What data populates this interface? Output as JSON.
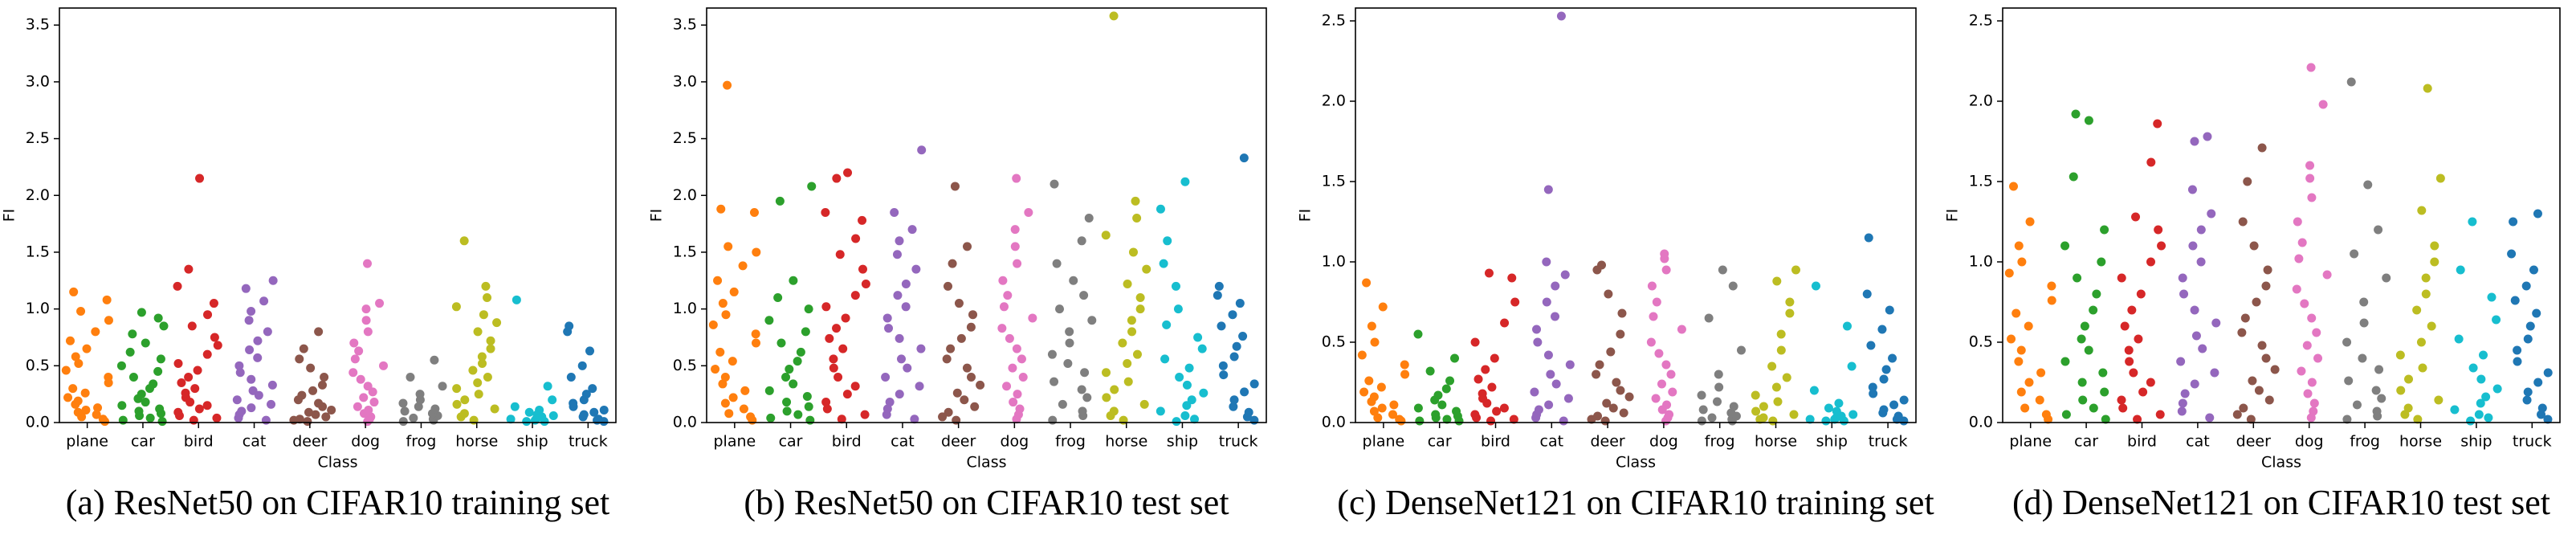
{
  "chart_data": [
    {
      "type": "strip",
      "title": "(a) ResNet50 on CIFAR10 training set",
      "xlabel": "Class",
      "ylabel": "FI",
      "categories": [
        "plane",
        "car",
        "bird",
        "cat",
        "deer",
        "dog",
        "frog",
        "horse",
        "ship",
        "truck"
      ],
      "colors": [
        "#ff7f0e",
        "#2ca02c",
        "#d62728",
        "#9467bd",
        "#8c564b",
        "#e377c2",
        "#7f7f7f",
        "#bcbd22",
        "#17becf",
        "#1f77b4"
      ],
      "ylim": [
        0,
        3.65
      ],
      "yticks": [
        {
          "value": 0,
          "label": "0.0"
        },
        0.5,
        {
          "value": 1,
          "label": "1.0"
        },
        1.5,
        {
          "value": 2,
          "label": "2.0"
        },
        2.5,
        {
          "value": 3,
          "label": "3.0"
        },
        3.5
      ],
      "values": [
        [
          0.01,
          0.03,
          0.05,
          0.07,
          0.09,
          0.11,
          0.13,
          0.16,
          0.19,
          0.22,
          0.26,
          0.3,
          0.35,
          0.4,
          0.46,
          0.52,
          0.58,
          0.65,
          0.72,
          0.8,
          0.9,
          0.98,
          1.08,
          1.15
        ],
        [
          0.01,
          0.02,
          0.04,
          0.06,
          0.08,
          0.1,
          0.12,
          0.15,
          0.18,
          0.21,
          0.25,
          0.3,
          0.34,
          0.4,
          0.45,
          0.5,
          0.56,
          0.62,
          0.7,
          0.78,
          0.85,
          0.92,
          0.97
        ],
        [
          0.02,
          0.04,
          0.06,
          0.09,
          0.12,
          0.15,
          0.18,
          0.22,
          0.26,
          0.3,
          0.35,
          0.4,
          0.46,
          0.52,
          0.6,
          0.68,
          0.75,
          0.85,
          0.95,
          1.05,
          1.2,
          1.35,
          2.15
        ],
        [
          0.02,
          0.04,
          0.07,
          0.1,
          0.13,
          0.16,
          0.2,
          0.24,
          0.28,
          0.33,
          0.38,
          0.44,
          0.5,
          0.57,
          0.64,
          0.72,
          0.8,
          0.9,
          0.98,
          1.07,
          1.18,
          1.25
        ],
        [
          0.01,
          0.02,
          0.03,
          0.05,
          0.07,
          0.09,
          0.11,
          0.14,
          0.17,
          0.2,
          0.24,
          0.28,
          0.33,
          0.4,
          0.48,
          0.56,
          0.65,
          0.8
        ],
        [
          0.01,
          0.03,
          0.05,
          0.08,
          0.11,
          0.14,
          0.18,
          0.22,
          0.27,
          0.32,
          0.38,
          0.44,
          0.5,
          0.56,
          0.63,
          0.7,
          0.8,
          0.9,
          1.0,
          1.05,
          1.4
        ],
        [
          0.01,
          0.02,
          0.03,
          0.04,
          0.06,
          0.08,
          0.1,
          0.12,
          0.14,
          0.17,
          0.2,
          0.25,
          0.32,
          0.4,
          0.55
        ],
        [
          0.02,
          0.05,
          0.08,
          0.12,
          0.16,
          0.2,
          0.25,
          0.3,
          0.35,
          0.4,
          0.46,
          0.52,
          0.58,
          0.65,
          0.72,
          0.8,
          0.88,
          0.95,
          1.02,
          1.1,
          1.2,
          1.6
        ],
        [
          0.01,
          0.01,
          0.02,
          0.03,
          0.04,
          0.05,
          0.06,
          0.07,
          0.09,
          0.11,
          0.14,
          0.2,
          0.32,
          1.08
        ],
        [
          0.01,
          0.02,
          0.03,
          0.05,
          0.07,
          0.09,
          0.11,
          0.14,
          0.17,
          0.2,
          0.25,
          0.3,
          0.4,
          0.5,
          0.63,
          0.8,
          0.85
        ]
      ]
    },
    {
      "type": "strip",
      "title": "(b) ResNet50 on CIFAR10 test set",
      "xlabel": "Class",
      "ylabel": "FI",
      "categories": [
        "plane",
        "car",
        "bird",
        "cat",
        "deer",
        "dog",
        "frog",
        "horse",
        "ship",
        "truck"
      ],
      "colors": [
        "#ff7f0e",
        "#2ca02c",
        "#d62728",
        "#9467bd",
        "#8c564b",
        "#e377c2",
        "#7f7f7f",
        "#bcbd22",
        "#17becf",
        "#1f77b4"
      ],
      "ylim": [
        0,
        3.65
      ],
      "yticks": [
        {
          "value": 0,
          "label": "0.0"
        },
        0.5,
        {
          "value": 1,
          "label": "1.0"
        },
        1.5,
        {
          "value": 2,
          "label": "2.0"
        },
        2.5,
        {
          "value": 3,
          "label": "3.0"
        },
        3.5
      ],
      "values": [
        [
          0.02,
          0.05,
          0.08,
          0.12,
          0.17,
          0.22,
          0.28,
          0.34,
          0.4,
          0.47,
          0.54,
          0.62,
          0.7,
          0.78,
          0.86,
          0.95,
          1.05,
          1.15,
          1.25,
          1.38,
          1.5,
          1.55,
          1.85,
          1.88,
          2.97
        ],
        [
          0.02,
          0.04,
          0.07,
          0.1,
          0.14,
          0.18,
          0.23,
          0.28,
          0.34,
          0.4,
          0.47,
          0.54,
          0.62,
          0.7,
          0.8,
          0.9,
          1.0,
          1.1,
          1.25,
          1.95,
          2.08
        ],
        [
          0.03,
          0.07,
          0.12,
          0.18,
          0.25,
          0.32,
          0.4,
          0.48,
          0.56,
          0.65,
          0.74,
          0.83,
          0.92,
          1.02,
          1.12,
          1.22,
          1.35,
          1.48,
          1.62,
          1.78,
          1.85,
          2.15,
          2.2
        ],
        [
          0.03,
          0.07,
          0.12,
          0.18,
          0.25,
          0.32,
          0.4,
          0.48,
          0.56,
          0.65,
          0.74,
          0.83,
          0.92,
          1.02,
          1.12,
          1.22,
          1.35,
          1.48,
          1.6,
          1.7,
          1.85,
          2.4
        ],
        [
          0.02,
          0.05,
          0.09,
          0.14,
          0.2,
          0.26,
          0.33,
          0.4,
          0.48,
          0.56,
          0.65,
          0.74,
          0.84,
          0.95,
          1.05,
          1.2,
          1.4,
          1.55,
          2.08
        ],
        [
          0.03,
          0.07,
          0.12,
          0.18,
          0.25,
          0.32,
          0.4,
          0.48,
          0.56,
          0.65,
          0.74,
          0.83,
          0.92,
          1.02,
          1.12,
          1.25,
          1.4,
          1.55,
          1.7,
          1.85,
          2.15
        ],
        [
          0.02,
          0.06,
          0.1,
          0.16,
          0.22,
          0.29,
          0.36,
          0.44,
          0.52,
          0.6,
          0.7,
          0.8,
          0.9,
          1.0,
          1.12,
          1.25,
          1.4,
          1.6,
          1.8,
          2.1
        ],
        [
          0.02,
          0.06,
          0.1,
          0.16,
          0.22,
          0.29,
          0.36,
          0.44,
          0.52,
          0.6,
          0.7,
          0.8,
          0.9,
          1.0,
          1.1,
          1.22,
          1.35,
          1.5,
          1.65,
          1.8,
          1.95,
          3.58
        ],
        [
          0.01,
          0.03,
          0.06,
          0.1,
          0.15,
          0.2,
          0.26,
          0.33,
          0.4,
          0.48,
          0.56,
          0.65,
          0.75,
          0.86,
          1.0,
          1.2,
          1.4,
          1.6,
          1.88,
          2.12
        ],
        [
          0.02,
          0.05,
          0.09,
          0.14,
          0.2,
          0.27,
          0.34,
          0.42,
          0.5,
          0.58,
          0.67,
          0.76,
          0.85,
          0.95,
          1.05,
          1.12,
          1.2,
          2.33
        ]
      ]
    },
    {
      "type": "strip",
      "title": "(c) DenseNet121 on CIFAR10 training set",
      "xlabel": "Class",
      "ylabel": "FI",
      "categories": [
        "plane",
        "car",
        "bird",
        "cat",
        "deer",
        "dog",
        "frog",
        "horse",
        "ship",
        "truck"
      ],
      "colors": [
        "#ff7f0e",
        "#2ca02c",
        "#d62728",
        "#9467bd",
        "#8c564b",
        "#e377c2",
        "#7f7f7f",
        "#bcbd22",
        "#17becf",
        "#1f77b4"
      ],
      "ylim": [
        0,
        2.58
      ],
      "yticks": [
        {
          "value": 0,
          "label": "0.0"
        },
        0.5,
        {
          "value": 1,
          "label": "1.0"
        },
        1.5,
        {
          "value": 2,
          "label": "2.0"
        },
        2.5
      ],
      "values": [
        [
          0.01,
          0.02,
          0.03,
          0.05,
          0.07,
          0.09,
          0.11,
          0.13,
          0.16,
          0.19,
          0.22,
          0.26,
          0.3,
          0.36,
          0.42,
          0.5,
          0.6,
          0.72,
          0.87
        ],
        [
          0.01,
          0.01,
          0.02,
          0.03,
          0.04,
          0.05,
          0.07,
          0.09,
          0.11,
          0.14,
          0.17,
          0.21,
          0.26,
          0.32,
          0.4,
          0.55
        ],
        [
          0.01,
          0.02,
          0.03,
          0.05,
          0.07,
          0.09,
          0.12,
          0.15,
          0.18,
          0.22,
          0.27,
          0.33,
          0.4,
          0.5,
          0.62,
          0.75,
          0.9,
          0.93
        ],
        [
          0.01,
          0.03,
          0.05,
          0.08,
          0.11,
          0.15,
          0.19,
          0.24,
          0.3,
          0.36,
          0.42,
          0.5,
          0.58,
          0.66,
          0.75,
          0.85,
          0.92,
          1.0,
          1.45,
          2.53
        ],
        [
          0.01,
          0.02,
          0.04,
          0.06,
          0.09,
          0.12,
          0.16,
          0.2,
          0.25,
          0.3,
          0.36,
          0.44,
          0.55,
          0.68,
          0.8,
          0.95,
          0.98
        ],
        [
          0.01,
          0.03,
          0.05,
          0.08,
          0.11,
          0.15,
          0.19,
          0.24,
          0.3,
          0.36,
          0.43,
          0.5,
          0.58,
          0.66,
          0.75,
          0.85,
          0.95,
          1.02,
          1.05
        ],
        [
          0.01,
          0.01,
          0.02,
          0.03,
          0.04,
          0.06,
          0.08,
          0.1,
          0.13,
          0.17,
          0.22,
          0.3,
          0.45,
          0.65,
          0.85,
          0.95
        ],
        [
          0.01,
          0.02,
          0.03,
          0.05,
          0.07,
          0.1,
          0.13,
          0.17,
          0.22,
          0.28,
          0.35,
          0.45,
          0.55,
          0.68,
          0.75,
          0.88,
          0.95
        ],
        [
          0.01,
          0.01,
          0.02,
          0.02,
          0.03,
          0.04,
          0.05,
          0.07,
          0.09,
          0.12,
          0.2,
          0.35,
          0.6,
          0.85
        ],
        [
          0.01,
          0.02,
          0.04,
          0.06,
          0.08,
          0.11,
          0.14,
          0.18,
          0.22,
          0.27,
          0.33,
          0.4,
          0.48,
          0.58,
          0.7,
          0.8,
          1.15
        ]
      ]
    },
    {
      "type": "strip",
      "title": "(d) DenseNet121 on CIFAR10 test set",
      "xlabel": "Class",
      "ylabel": "FI",
      "categories": [
        "plane",
        "car",
        "bird",
        "cat",
        "deer",
        "dog",
        "frog",
        "horse",
        "ship",
        "truck"
      ],
      "colors": [
        "#ff7f0e",
        "#2ca02c",
        "#d62728",
        "#9467bd",
        "#8c564b",
        "#e377c2",
        "#7f7f7f",
        "#bcbd22",
        "#17becf",
        "#1f77b4"
      ],
      "ylim": [
        0,
        2.58
      ],
      "yticks": [
        {
          "value": 0,
          "label": "0.0"
        },
        0.5,
        {
          "value": 1,
          "label": "1.0"
        },
        1.5,
        {
          "value": 2,
          "label": "2.0"
        },
        2.5
      ],
      "values": [
        [
          0.02,
          0.05,
          0.09,
          0.14,
          0.19,
          0.25,
          0.31,
          0.38,
          0.45,
          0.52,
          0.6,
          0.68,
          0.76,
          0.85,
          0.93,
          1.0,
          1.1,
          1.25,
          1.47
        ],
        [
          0.02,
          0.05,
          0.09,
          0.14,
          0.19,
          0.25,
          0.31,
          0.38,
          0.45,
          0.52,
          0.6,
          0.7,
          0.8,
          0.9,
          1.0,
          1.1,
          1.2,
          1.53,
          1.88,
          1.92
        ],
        [
          0.02,
          0.05,
          0.09,
          0.14,
          0.19,
          0.25,
          0.31,
          0.38,
          0.45,
          0.52,
          0.6,
          0.7,
          0.8,
          0.9,
          1.0,
          1.1,
          1.2,
          1.28,
          1.62,
          1.86
        ],
        [
          0.03,
          0.07,
          0.12,
          0.18,
          0.24,
          0.31,
          0.38,
          0.46,
          0.54,
          0.62,
          0.7,
          0.8,
          0.9,
          1.0,
          1.1,
          1.2,
          1.3,
          1.45,
          1.75,
          1.78
        ],
        [
          0.02,
          0.05,
          0.09,
          0.14,
          0.2,
          0.26,
          0.33,
          0.4,
          0.48,
          0.56,
          0.65,
          0.75,
          0.85,
          0.95,
          1.1,
          1.25,
          1.5,
          1.71
        ],
        [
          0.03,
          0.07,
          0.12,
          0.18,
          0.25,
          0.32,
          0.4,
          0.48,
          0.56,
          0.65,
          0.74,
          0.83,
          0.92,
          1.02,
          1.12,
          1.25,
          1.4,
          1.52,
          1.6,
          1.98,
          2.21
        ],
        [
          0.02,
          0.04,
          0.07,
          0.11,
          0.15,
          0.2,
          0.26,
          0.33,
          0.4,
          0.5,
          0.62,
          0.75,
          0.9,
          1.05,
          1.2,
          1.48,
          2.12
        ],
        [
          0.02,
          0.05,
          0.09,
          0.14,
          0.2,
          0.27,
          0.34,
          0.42,
          0.5,
          0.6,
          0.7,
          0.8,
          0.9,
          1.0,
          1.1,
          1.32,
          1.52,
          2.08
        ],
        [
          0.01,
          0.03,
          0.05,
          0.08,
          0.12,
          0.16,
          0.21,
          0.27,
          0.34,
          0.42,
          0.52,
          0.64,
          0.78,
          0.95,
          1.25
        ],
        [
          0.02,
          0.05,
          0.09,
          0.14,
          0.19,
          0.25,
          0.31,
          0.38,
          0.45,
          0.52,
          0.6,
          0.68,
          0.76,
          0.85,
          0.95,
          1.05,
          1.25,
          1.3
        ]
      ]
    }
  ]
}
